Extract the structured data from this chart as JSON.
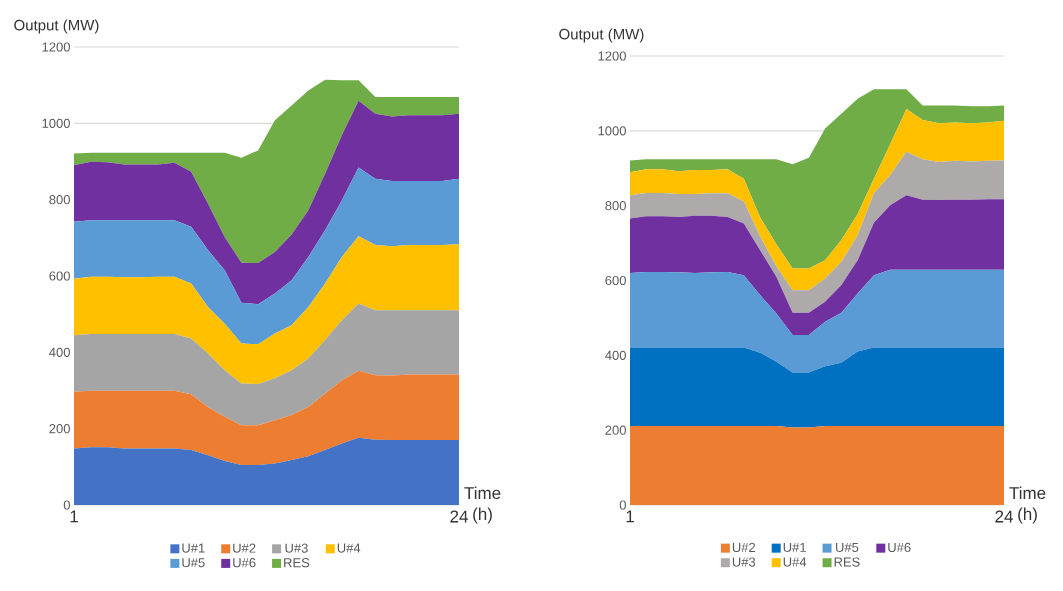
{
  "chart_data": [
    {
      "type": "area",
      "stacked": true,
      "xlabel": "Time (h)",
      "ylabel": "Output (MW)",
      "x": [
        1,
        2,
        3,
        4,
        5,
        6,
        7,
        8,
        9,
        10,
        11,
        12,
        13,
        14,
        15,
        16,
        17,
        18,
        19,
        20,
        21,
        22,
        23,
        24
      ],
      "xlim": [
        1,
        24
      ],
      "xticks": [
        1,
        24
      ],
      "ylim": [
        0,
        1200
      ],
      "yticks": [
        0,
        200,
        400,
        600,
        800,
        1000,
        1200
      ],
      "grid": "y",
      "legend": "bottom",
      "series": [
        {
          "name": "U#1",
          "color": "#4472c4",
          "values": [
            148,
            151,
            151,
            148,
            148,
            148,
            148,
            144,
            130,
            115,
            105,
            105,
            109,
            118,
            128,
            144,
            161,
            176,
            171,
            170,
            170,
            170,
            170,
            170
          ]
        },
        {
          "name": "U#2",
          "color": "#ed7d31",
          "values": [
            149,
            148,
            148,
            151,
            151,
            151,
            151,
            146,
            127,
            116,
            104,
            104,
            113,
            118,
            129,
            148,
            166,
            176,
            169,
            169,
            172,
            172,
            172,
            172
          ]
        },
        {
          "name": "U#3",
          "color": "#a5a5a5",
          "values": [
            148,
            149,
            149,
            149,
            149,
            149,
            149,
            146,
            140,
            122,
            109,
            108,
            110,
            117,
            127,
            140,
            157,
            176,
            170,
            171,
            168,
            168,
            168,
            168
          ]
        },
        {
          "name": "U#4",
          "color": "#ffc000",
          "values": [
            148,
            150,
            150,
            149,
            149,
            150,
            150,
            144,
            122,
            122,
            105,
            104,
            117,
            118,
            135,
            148,
            166,
            176,
            171,
            168,
            171,
            171,
            171,
            173
          ]
        },
        {
          "name": "U#5",
          "color": "#5b9bd5",
          "values": [
            149,
            148,
            148,
            149,
            149,
            148,
            148,
            149,
            149,
            140,
            107,
            105,
            105,
            118,
            131,
            140,
            148,
            180,
            174,
            171,
            168,
            168,
            168,
            172
          ]
        },
        {
          "name": "U#6",
          "color": "#7030a0",
          "values": [
            148,
            153,
            152,
            146,
            146,
            146,
            151,
            144,
            122,
            87,
            105,
            108,
            109,
            120,
            122,
            148,
            171,
            175,
            170,
            169,
            172,
            172,
            172,
            170
          ]
        },
        {
          "name": "RES",
          "color": "#70ad47",
          "values": [
            31,
            24,
            25,
            31,
            31,
            31,
            26,
            50,
            133,
            221,
            275,
            295,
            345,
            338,
            314,
            246,
            144,
            54,
            44,
            51,
            48,
            48,
            48,
            44
          ]
        }
      ]
    },
    {
      "type": "area",
      "stacked": true,
      "xlabel": "Time (h)",
      "ylabel": "Output (MW)",
      "x": [
        1,
        2,
        3,
        4,
        5,
        6,
        7,
        8,
        9,
        10,
        11,
        12,
        13,
        14,
        15,
        16,
        17,
        18,
        19,
        20,
        21,
        22,
        23,
        24
      ],
      "xlim": [
        1,
        24
      ],
      "xticks": [
        1,
        24
      ],
      "ylim": [
        0,
        1200
      ],
      "yticks": [
        0,
        200,
        400,
        600,
        800,
        1000,
        1200
      ],
      "grid": "y",
      "legend": "bottom",
      "series": [
        {
          "name": "U#2",
          "color": "#ed7d31",
          "values": [
            211,
            211,
            211,
            211,
            211,
            211,
            211,
            211,
            211,
            211,
            207,
            207,
            211,
            211,
            211,
            211,
            211,
            211,
            211,
            211,
            211,
            211,
            211,
            211
          ]
        },
        {
          "name": "U#1",
          "color": "#0070c0",
          "values": [
            210,
            210,
            210,
            210,
            210,
            210,
            210,
            210,
            196,
            172,
            147,
            147,
            160,
            169,
            199,
            210,
            210,
            210,
            210,
            210,
            210,
            210,
            210,
            210
          ]
        },
        {
          "name": "U#5",
          "color": "#5b9bd5",
          "values": [
            199,
            202,
            202,
            201,
            199,
            201,
            202,
            193,
            154,
            129,
            100,
            100,
            119,
            134,
            155,
            193,
            208,
            208,
            208,
            208,
            208,
            208,
            208,
            208
          ]
        },
        {
          "name": "U#6",
          "color": "#7030a0",
          "values": [
            146,
            149,
            149,
            148,
            153,
            151,
            147,
            138,
            120,
            98,
            60,
            60,
            53,
            74,
            89,
            140,
            172,
            199,
            187,
            186,
            187,
            187,
            188,
            188
          ]
        },
        {
          "name": "U#3",
          "color": "#aeaaaa",
          "values": [
            62,
            62,
            62,
            61,
            58,
            60,
            63,
            59,
            37,
            28,
            60,
            60,
            62,
            62,
            67,
            79,
            81,
            116,
            108,
            102,
            104,
            102,
            103,
            104
          ]
        },
        {
          "name": "U#4",
          "color": "#ffc000",
          "values": [
            61,
            63,
            63,
            61,
            64,
            62,
            64,
            61,
            51,
            59,
            58,
            58,
            49,
            58,
            57,
            39,
            82,
            114,
            105,
            103,
            102,
            102,
            102,
            106
          ]
        },
        {
          "name": "RES",
          "color": "#70ad47",
          "values": [
            32,
            27,
            27,
            32,
            29,
            29,
            27,
            52,
            155,
            227,
            279,
            296,
            352,
            338,
            308,
            239,
            147,
            53,
            39,
            48,
            46,
            46,
            44,
            41
          ]
        }
      ]
    }
  ]
}
